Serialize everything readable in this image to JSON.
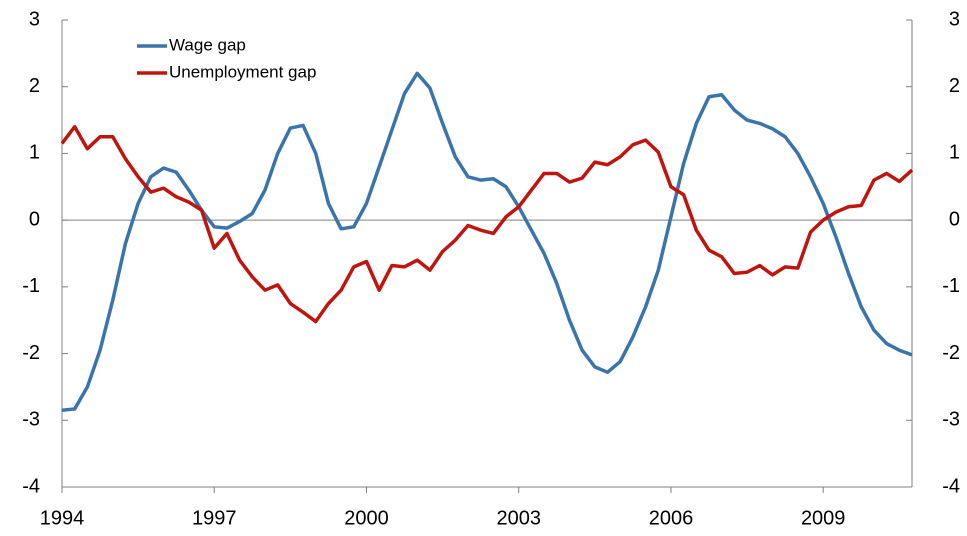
{
  "chart_data": {
    "type": "line",
    "x": [
      1994,
      1994.25,
      1994.5,
      1994.75,
      1995,
      1995.25,
      1995.5,
      1995.75,
      1996,
      1996.25,
      1996.5,
      1996.75,
      1997,
      1997.25,
      1997.5,
      1997.75,
      1998,
      1998.25,
      1998.5,
      1998.75,
      1999,
      1999.25,
      1999.5,
      1999.75,
      2000,
      2000.25,
      2000.5,
      2000.75,
      2001,
      2001.25,
      2001.5,
      2001.75,
      2002,
      2002.25,
      2002.5,
      2002.75,
      2003,
      2003.25,
      2003.5,
      2003.75,
      2004,
      2004.25,
      2004.5,
      2004.75,
      2005,
      2005.25,
      2005.5,
      2005.75,
      2006,
      2006.25,
      2006.5,
      2006.75,
      2007,
      2007.25,
      2007.5,
      2007.75,
      2008,
      2008.25,
      2008.5,
      2008.75,
      2009,
      2009.25,
      2009.5,
      2009.75,
      2010,
      2010.25,
      2010.5,
      2010.75
    ],
    "series": [
      {
        "name": "Wage gap",
        "color": "#3a74ab",
        "values": [
          -2.85,
          -2.83,
          -2.5,
          -1.95,
          -1.2,
          -0.35,
          0.25,
          0.65,
          0.78,
          0.72,
          0.45,
          0.15,
          -0.1,
          -0.12,
          -0.02,
          0.1,
          0.45,
          1.0,
          1.38,
          1.42,
          1.0,
          0.25,
          -0.13,
          -0.1,
          0.25,
          0.8,
          1.35,
          1.9,
          2.2,
          1.98,
          1.45,
          0.95,
          0.65,
          0.6,
          0.62,
          0.5,
          0.2,
          -0.15,
          -0.5,
          -0.95,
          -1.5,
          -1.95,
          -2.2,
          -2.28,
          -2.12,
          -1.75,
          -1.3,
          -0.75,
          0.05,
          0.85,
          1.45,
          1.85,
          1.88,
          1.65,
          1.5,
          1.45,
          1.37,
          1.25,
          1.0,
          0.65,
          0.25,
          -0.25,
          -0.8,
          -1.3,
          -1.65,
          -1.85,
          -1.95,
          -2.02
        ]
      },
      {
        "name": "Unemployment gap",
        "color": "#c0140f",
        "values": [
          1.15,
          1.4,
          1.07,
          1.25,
          1.25,
          0.92,
          0.65,
          0.42,
          0.48,
          0.35,
          0.27,
          0.15,
          -0.42,
          -0.2,
          -0.6,
          -0.85,
          -1.05,
          -0.97,
          -1.25,
          -1.38,
          -1.52,
          -1.25,
          -1.05,
          -0.7,
          -0.62,
          -1.05,
          -0.68,
          -0.7,
          -0.6,
          -0.75,
          -0.47,
          -0.3,
          -0.08,
          -0.15,
          -0.2,
          0.05,
          0.2,
          0.45,
          0.7,
          0.7,
          0.57,
          0.63,
          0.87,
          0.83,
          0.95,
          1.13,
          1.2,
          1.02,
          0.5,
          0.38,
          -0.15,
          -0.45,
          -0.55,
          -0.8,
          -0.78,
          -0.68,
          -0.82,
          -0.7,
          -0.72,
          -0.18,
          0,
          0.12,
          0.2,
          0.22,
          0.6,
          0.7,
          0.58,
          0.75
        ]
      }
    ],
    "xlim": [
      1994,
      2010.75
    ],
    "xticks": [
      1994,
      1997,
      2000,
      2003,
      2006,
      2009
    ],
    "ylim": [
      -4,
      3
    ],
    "yticks": [
      -4,
      -3,
      -2,
      -1,
      0,
      1,
      2,
      3
    ],
    "y2lim": [
      -4,
      3
    ],
    "y2ticks": [
      -4,
      -3,
      -2,
      -1,
      0,
      1,
      2,
      3
    ],
    "legend": "upper left"
  }
}
